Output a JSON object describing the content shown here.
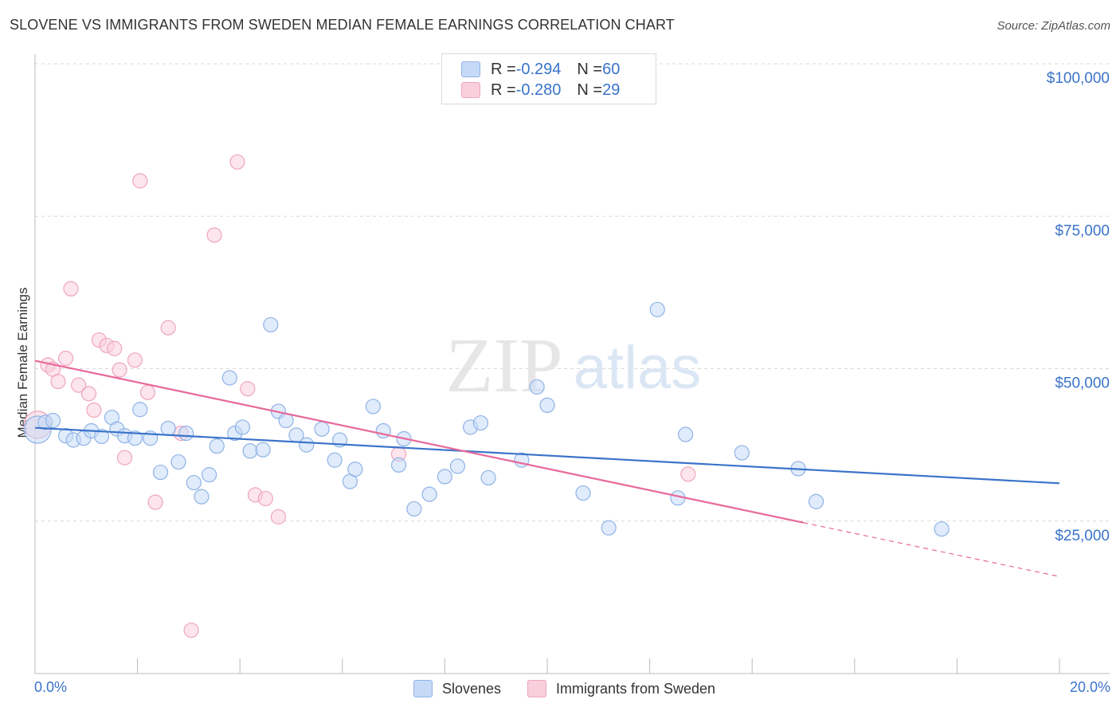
{
  "title": "SLOVENE VS IMMIGRANTS FROM SWEDEN MEDIAN FEMALE EARNINGS CORRELATION CHART",
  "source": "Source: ZipAtlas.com",
  "watermark": {
    "zip": "ZIP",
    "atlas": "atlas"
  },
  "colors": {
    "blue": "#3a73c9",
    "blue_fill": "#c6daf7",
    "blue_stroke": "#8fb3e6",
    "pink": "#e8689a",
    "pink_fill": "#f9cfdc",
    "pink_stroke": "#eea5bf",
    "grid": "#d9d9d9",
    "axis_text": "#3a73c9"
  },
  "legend_top": [
    {
      "r_label": "R = ",
      "r_value": "-0.294",
      "n_label": "N = ",
      "n_value": "60"
    },
    {
      "r_label": "R = ",
      "r_value": "-0.280",
      "n_label": "N = ",
      "n_value": "29"
    }
  ],
  "chart_data": {
    "type": "scatter",
    "title": "SLOVENE VS IMMIGRANTS FROM SWEDEN MEDIAN FEMALE EARNINGS CORRELATION CHART",
    "xlabel": "",
    "ylabel": "Median Female Earnings",
    "xlim": [
      0,
      20
    ],
    "ylim": [
      0,
      105000
    ],
    "x_tick_labels": [
      "0.0%",
      "20.0%"
    ],
    "y_ticks": [
      25000,
      50000,
      75000,
      100000
    ],
    "y_tick_labels": [
      "$25,000",
      "$50,000",
      "$75,000",
      "$100,000"
    ],
    "grid": true,
    "legend_position": "bottom-center",
    "series": [
      {
        "name": "Slovenes",
        "color": "#3a73c9",
        "r": -0.294,
        "n": 60,
        "trend": {
          "x": [
            0,
            20
          ],
          "y": [
            40300,
            31200
          ],
          "dashed_from": null
        },
        "points": [
          {
            "x": 0.05,
            "y": 40000,
            "size": "large"
          },
          {
            "x": 0.2,
            "y": 41200
          },
          {
            "x": 0.35,
            "y": 41500
          },
          {
            "x": 0.6,
            "y": 39000
          },
          {
            "x": 0.75,
            "y": 38300
          },
          {
            "x": 0.95,
            "y": 38600
          },
          {
            "x": 1.1,
            "y": 39800
          },
          {
            "x": 1.3,
            "y": 38900
          },
          {
            "x": 1.5,
            "y": 42000
          },
          {
            "x": 1.6,
            "y": 40100
          },
          {
            "x": 1.75,
            "y": 39000
          },
          {
            "x": 1.95,
            "y": 38600
          },
          {
            "x": 2.05,
            "y": 43300
          },
          {
            "x": 2.25,
            "y": 38600
          },
          {
            "x": 2.45,
            "y": 33000
          },
          {
            "x": 2.6,
            "y": 40200
          },
          {
            "x": 2.8,
            "y": 34700
          },
          {
            "x": 2.95,
            "y": 39400
          },
          {
            "x": 3.1,
            "y": 31300
          },
          {
            "x": 3.25,
            "y": 29000
          },
          {
            "x": 3.4,
            "y": 32600
          },
          {
            "x": 3.55,
            "y": 37300
          },
          {
            "x": 3.8,
            "y": 48500
          },
          {
            "x": 3.9,
            "y": 39400
          },
          {
            "x": 4.05,
            "y": 40400
          },
          {
            "x": 4.2,
            "y": 36500
          },
          {
            "x": 4.45,
            "y": 36700
          },
          {
            "x": 4.6,
            "y": 57200
          },
          {
            "x": 4.75,
            "y": 43000
          },
          {
            "x": 4.9,
            "y": 41500
          },
          {
            "x": 5.1,
            "y": 39100
          },
          {
            "x": 5.3,
            "y": 37500
          },
          {
            "x": 5.6,
            "y": 40100
          },
          {
            "x": 5.85,
            "y": 35000
          },
          {
            "x": 5.95,
            "y": 38300
          },
          {
            "x": 6.15,
            "y": 31500
          },
          {
            "x": 6.25,
            "y": 33500
          },
          {
            "x": 6.6,
            "y": 43800
          },
          {
            "x": 6.8,
            "y": 39800
          },
          {
            "x": 7.1,
            "y": 34200
          },
          {
            "x": 7.2,
            "y": 38500
          },
          {
            "x": 7.4,
            "y": 27000
          },
          {
            "x": 7.7,
            "y": 29400
          },
          {
            "x": 8.0,
            "y": 32300
          },
          {
            "x": 8.25,
            "y": 34000
          },
          {
            "x": 8.5,
            "y": 40400
          },
          {
            "x": 8.7,
            "y": 41100
          },
          {
            "x": 8.85,
            "y": 32100
          },
          {
            "x": 9.5,
            "y": 35000
          },
          {
            "x": 9.8,
            "y": 47000
          },
          {
            "x": 10.0,
            "y": 44000
          },
          {
            "x": 10.7,
            "y": 29600
          },
          {
            "x": 11.2,
            "y": 23900
          },
          {
            "x": 12.15,
            "y": 59700
          },
          {
            "x": 12.55,
            "y": 28800
          },
          {
            "x": 12.7,
            "y": 39200
          },
          {
            "x": 13.8,
            "y": 36200
          },
          {
            "x": 14.9,
            "y": 33600
          },
          {
            "x": 15.25,
            "y": 28200
          },
          {
            "x": 17.7,
            "y": 23700
          }
        ]
      },
      {
        "name": "Immigrants from Sweden",
        "color": "#e8689a",
        "r": -0.28,
        "n": 29,
        "trend": {
          "x": [
            0,
            20
          ],
          "y": [
            51300,
            15900
          ],
          "solid_until_x": 15.0
        },
        "points": [
          {
            "x": 0.05,
            "y": 40800,
            "size": "large"
          },
          {
            "x": 0.25,
            "y": 50600
          },
          {
            "x": 0.35,
            "y": 49900
          },
          {
            "x": 0.45,
            "y": 47900
          },
          {
            "x": 0.6,
            "y": 51700
          },
          {
            "x": 0.7,
            "y": 63100
          },
          {
            "x": 0.85,
            "y": 47300
          },
          {
            "x": 1.05,
            "y": 45900
          },
          {
            "x": 1.15,
            "y": 43200
          },
          {
            "x": 1.25,
            "y": 54700
          },
          {
            "x": 1.4,
            "y": 53800
          },
          {
            "x": 1.55,
            "y": 53300
          },
          {
            "x": 1.65,
            "y": 49800
          },
          {
            "x": 1.75,
            "y": 35400
          },
          {
            "x": 1.95,
            "y": 51400
          },
          {
            "x": 2.05,
            "y": 80800
          },
          {
            "x": 2.2,
            "y": 46100
          },
          {
            "x": 2.35,
            "y": 28100
          },
          {
            "x": 2.6,
            "y": 56700
          },
          {
            "x": 2.85,
            "y": 39400
          },
          {
            "x": 3.05,
            "y": 7100
          },
          {
            "x": 3.5,
            "y": 71900
          },
          {
            "x": 3.95,
            "y": 83900
          },
          {
            "x": 4.15,
            "y": 46700
          },
          {
            "x": 4.3,
            "y": 29300
          },
          {
            "x": 4.5,
            "y": 28700
          },
          {
            "x": 4.75,
            "y": 25700
          },
          {
            "x": 7.1,
            "y": 36000
          },
          {
            "x": 12.75,
            "y": 32700
          }
        ]
      }
    ]
  },
  "legend_bottom": [
    "Slovenes",
    "Immigrants from Sweden"
  ]
}
